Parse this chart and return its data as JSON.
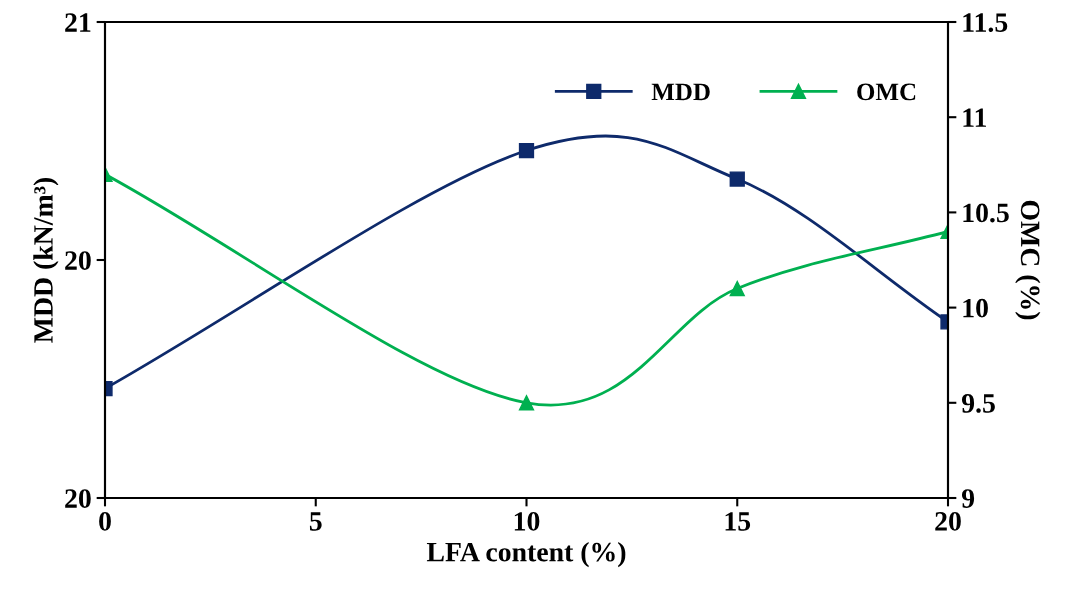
{
  "chart_data": {
    "type": "line",
    "xlabel": "LFA content (%)",
    "ylabel": "MDD (kN/m³)",
    "y2label": "OMC (%)",
    "x": [
      0,
      10,
      15,
      20
    ],
    "series": [
      {
        "name": "MDD",
        "color": "#0e2a6b",
        "marker": "square",
        "values": [
          19.73,
          20.23,
          20.17,
          19.87
        ]
      },
      {
        "name": "OMC",
        "color": "#00b050",
        "marker": "triangle",
        "axis": "y2",
        "values": [
          10.7,
          9.5,
          10.1,
          10.4
        ]
      }
    ],
    "xlim": [
      0,
      20
    ],
    "xticks": [
      0,
      5,
      10,
      15,
      20
    ],
    "ylim": [
      19.5,
      20.5
    ],
    "yticks": [
      {
        "value": 19.5,
        "label": "20"
      },
      {
        "value": 20,
        "label": "20"
      },
      {
        "value": 20.5,
        "label": "21"
      }
    ],
    "y2lim": [
      9,
      11.5
    ],
    "y2ticks": [
      9,
      9.5,
      10,
      10.5,
      11,
      11.5
    ],
    "legend": "top right",
    "grid": false,
    "line_style": "solid"
  }
}
